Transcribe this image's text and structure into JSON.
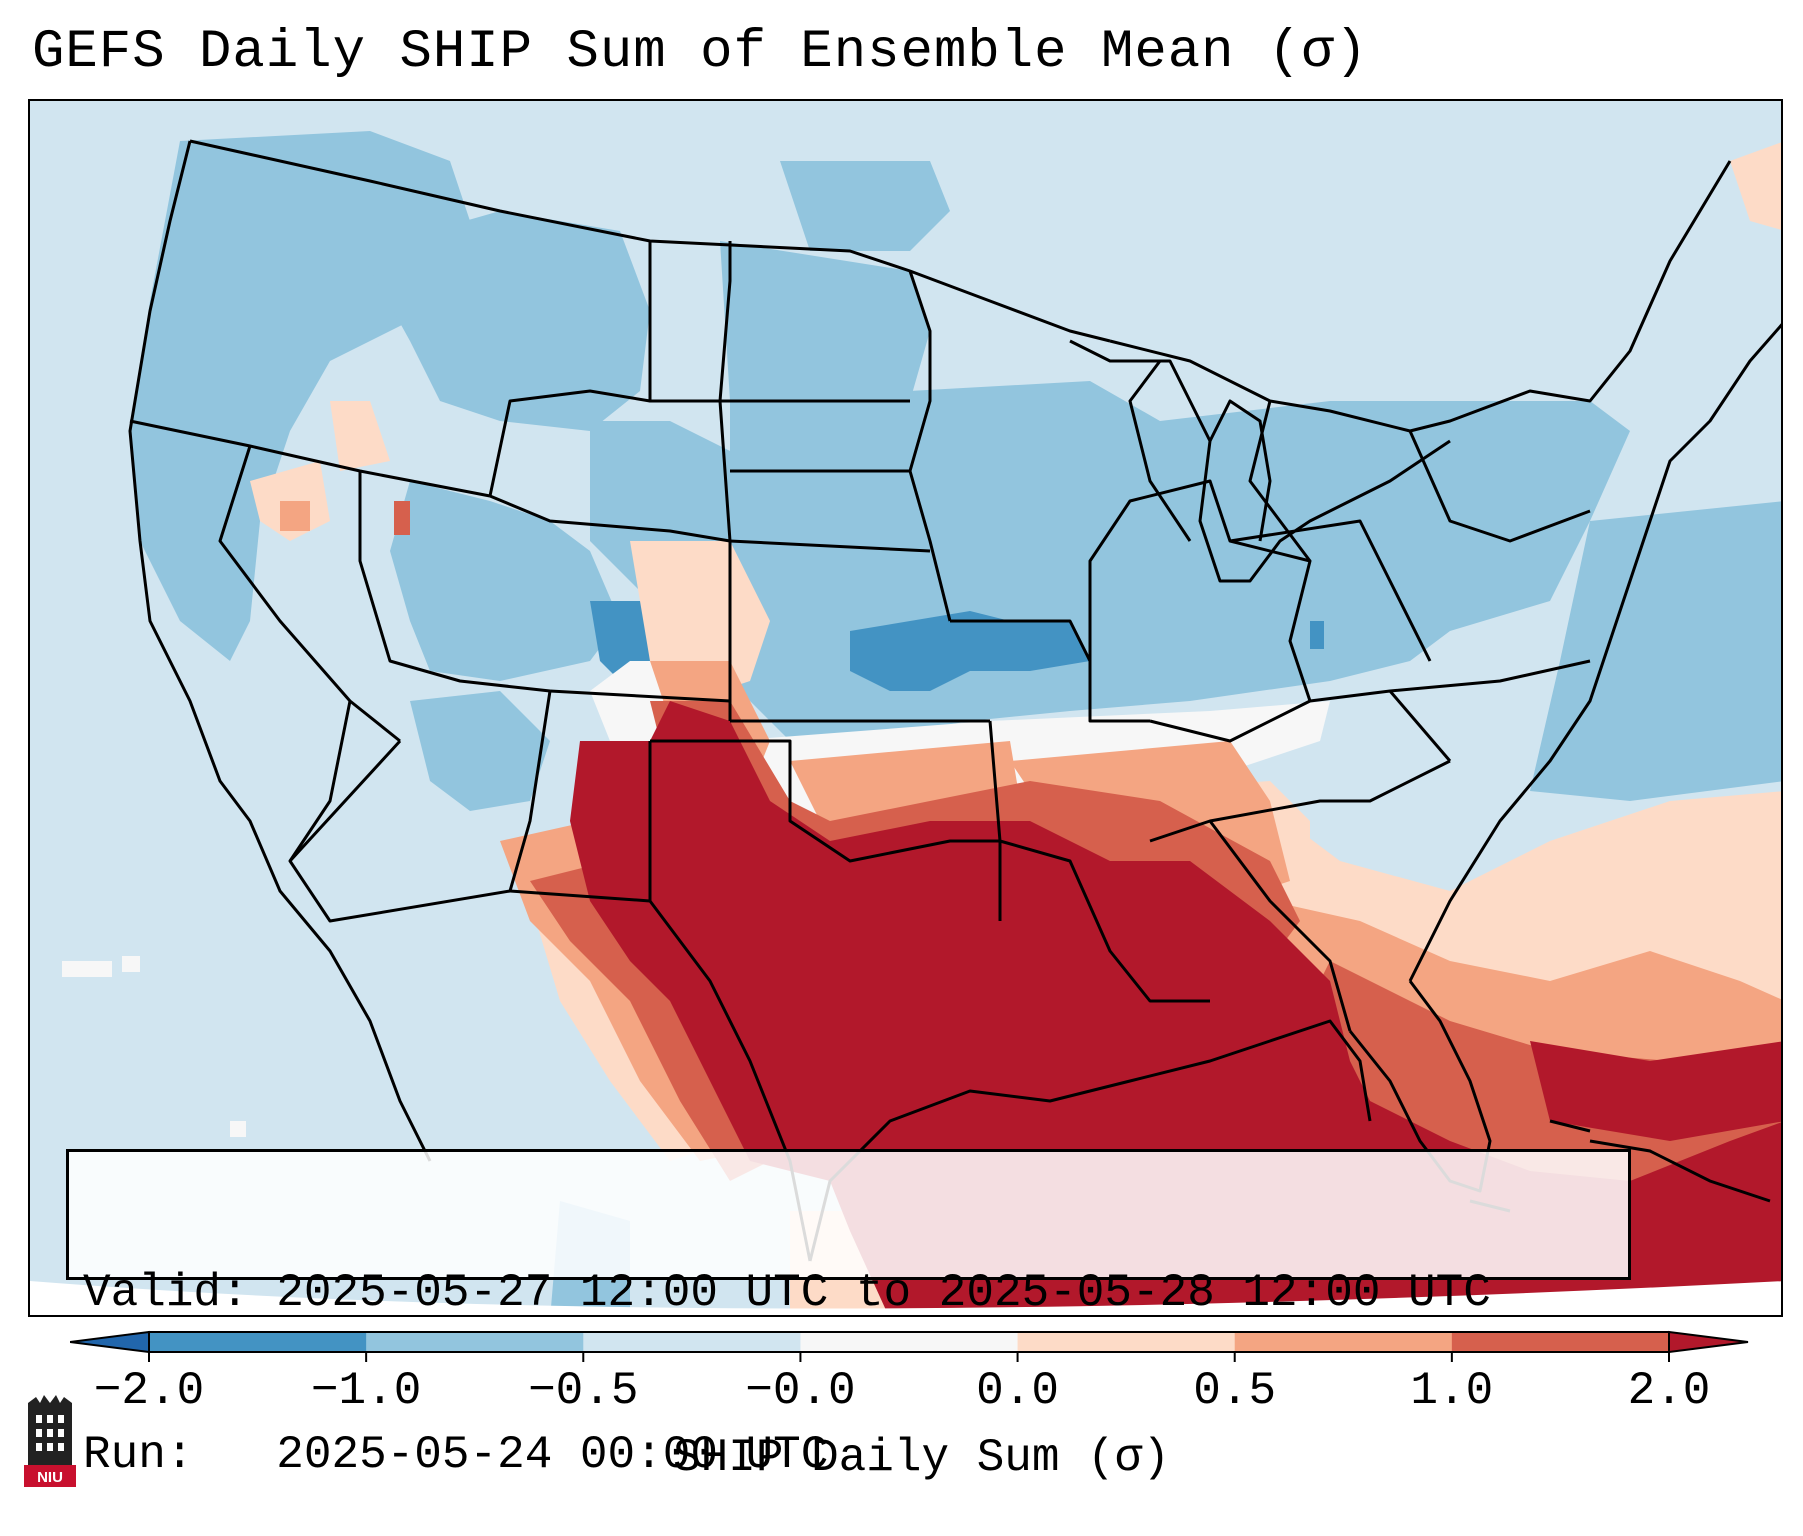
{
  "title": "GEFS Daily SHIP Sum of Ensemble Mean (σ)",
  "info": {
    "valid_label": "Valid:",
    "valid_value": "2025-05-27 12:00 UTC to 2025-05-28 12:00 UTC",
    "run_label": "Run:",
    "run_value": "2025-05-24 00:00 UTC"
  },
  "colorbar": {
    "label": "SHIP Daily Sum (σ)",
    "ticks": [
      "−2.0",
      "−1.0",
      "−0.5",
      "−0.0",
      "0.0",
      "0.5",
      "1.0",
      "2.0"
    ],
    "bins": [
      {
        "color": "#4393c3"
      },
      {
        "color": "#92c5de"
      },
      {
        "color": "#d1e5f0"
      },
      {
        "color": "#f7f7f7"
      },
      {
        "color": "#fddbc7"
      },
      {
        "color": "#f4a582"
      },
      {
        "color": "#d6604d"
      }
    ],
    "under_color": "#2166ac",
    "over_color": "#b2182b"
  },
  "field_colors": {
    "strong_negative": "#4393c3",
    "negative": "#92c5de",
    "near_zero_negative": "#d1e5f0",
    "near_zero": "#f7f7f7",
    "slight_positive": "#fddbc7",
    "positive": "#f4a582",
    "strong_positive": "#d6604d",
    "extreme_positive": "#b2182b"
  },
  "logo": {
    "text": "NIU",
    "color": "#c8102e"
  }
}
